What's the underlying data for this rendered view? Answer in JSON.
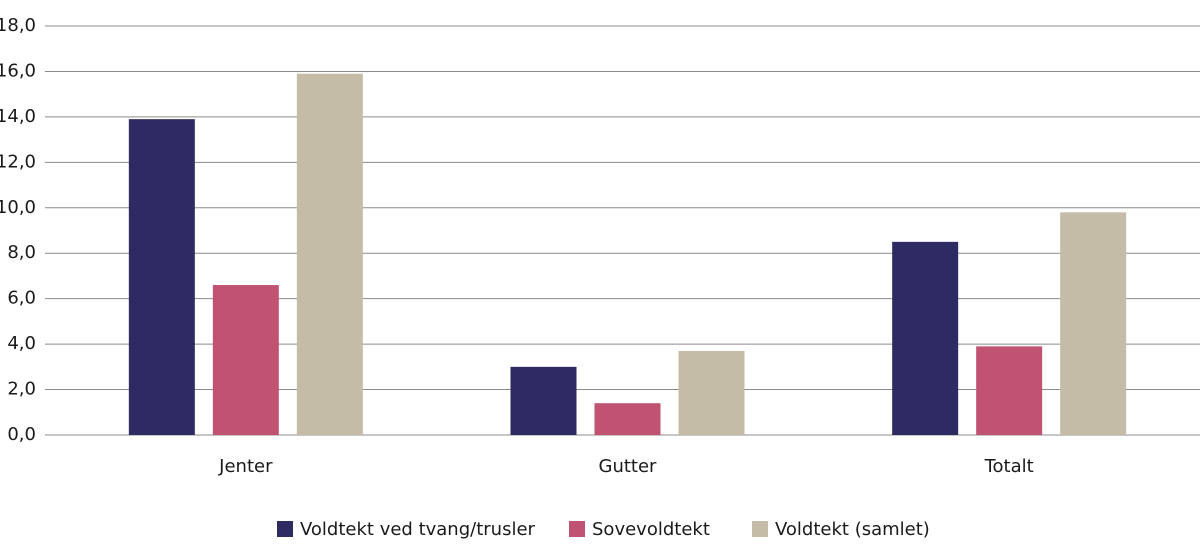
{
  "chart_data": {
    "type": "bar",
    "categories": [
      "Jenter",
      "Gutter",
      "Totalt"
    ],
    "series": [
      {
        "name": "Voldtekt ved tvang/trusler",
        "color": "#2e2a62",
        "values": [
          13.9,
          3.0,
          8.5
        ]
      },
      {
        "name": "Sovevoldtekt",
        "color": "#c05272",
        "values": [
          6.6,
          1.4,
          3.9
        ]
      },
      {
        "name": "Voldtekt (samlet)",
        "color": "#c5bca8",
        "values": [
          15.9,
          3.7,
          9.8
        ]
      }
    ],
    "ylim": [
      0,
      18
    ],
    "yticks": [
      {
        "value": 0,
        "label": "0,0"
      },
      {
        "value": 2,
        "label": "2,0"
      },
      {
        "value": 4,
        "label": "4,0"
      },
      {
        "value": 6,
        "label": "6,0"
      },
      {
        "value": 8,
        "label": "8,0"
      },
      {
        "value": 10,
        "label": "10,0"
      },
      {
        "value": 12,
        "label": "12,0"
      },
      {
        "value": 14,
        "label": "14,0"
      },
      {
        "value": 16,
        "label": "16,0"
      },
      {
        "value": 18,
        "label": "18,0"
      }
    ],
    "grid": true,
    "legend": "bottom"
  }
}
